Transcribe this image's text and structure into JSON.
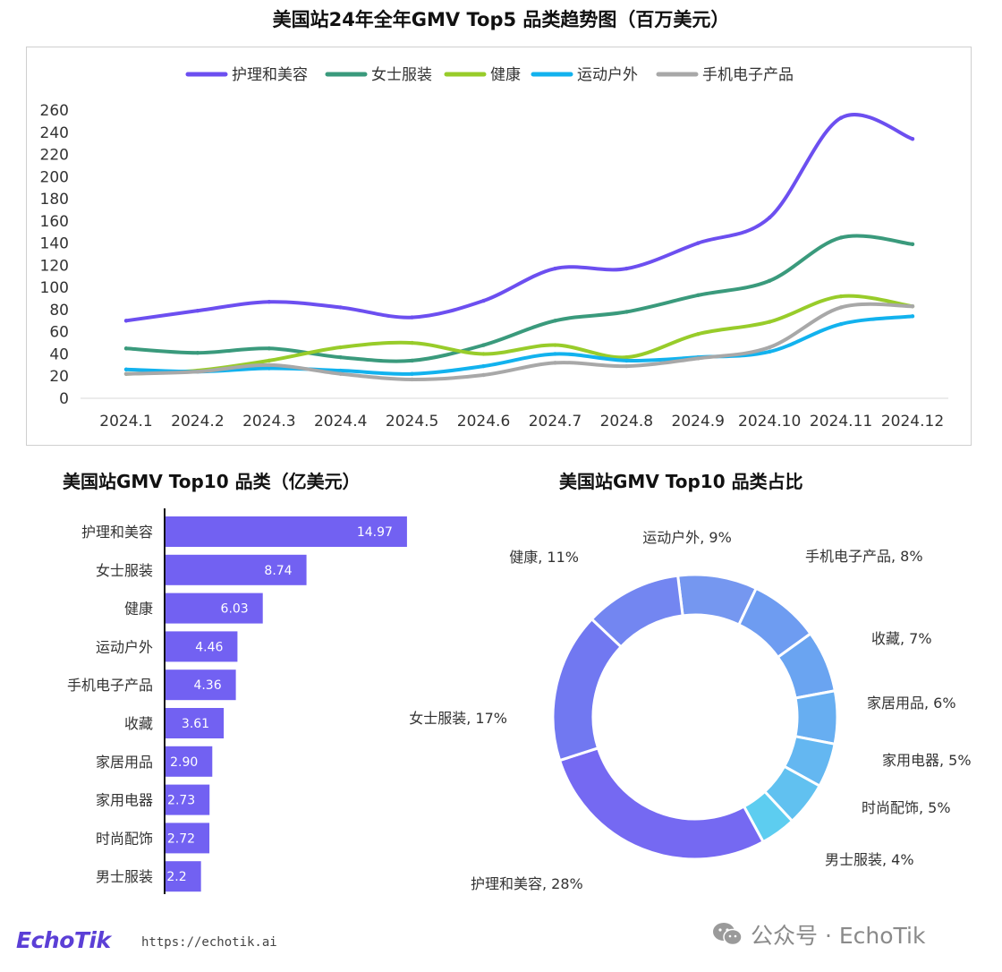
{
  "line_title": "美国站24年全年GMV Top5 品类趋势图（百万美元）",
  "bar_title": "美国站GMV Top10 品类（亿美元）",
  "donut_title": "美国站GMV Top10 品类占比",
  "footer": {
    "brand": "EchoTik",
    "url": "https://echotik.ai",
    "watermark": "公众号 · EchoTik"
  },
  "chart_data": [
    {
      "type": "line",
      "title": "美国站24年全年GMV Top5 品类趋势图（百万美元）",
      "x": [
        "2024.1",
        "2024.2",
        "2024.3",
        "2024.4",
        "2024.5",
        "2024.6",
        "2024.7",
        "2024.8",
        "2024.9",
        "2024.10",
        "2024.11",
        "2024.12"
      ],
      "ylim": [
        0,
        260
      ],
      "yticks": [
        0,
        20,
        40,
        60,
        80,
        100,
        120,
        140,
        160,
        180,
        200,
        220,
        240,
        260
      ],
      "grid": false,
      "legend": "top",
      "series": [
        {
          "name": "护理和美容",
          "color": "#6c4ff0",
          "values": [
            70,
            79,
            87,
            82,
            73,
            88,
            117,
            117,
            140,
            163,
            253,
            234
          ]
        },
        {
          "name": "女士服装",
          "color": "#3a9a7c",
          "values": [
            45,
            41,
            45,
            37,
            34,
            48,
            70,
            78,
            93,
            106,
            145,
            139
          ]
        },
        {
          "name": "健康",
          "color": "#98cc2a",
          "values": [
            22,
            25,
            34,
            46,
            50,
            40,
            48,
            37,
            58,
            69,
            92,
            83
          ]
        },
        {
          "name": "运动户外",
          "color": "#12b2ee",
          "values": [
            26,
            24,
            27,
            25,
            22,
            29,
            40,
            34,
            37,
            42,
            67,
            74
          ]
        },
        {
          "name": "手机电子产品",
          "color": "#a8a8a8",
          "values": [
            22,
            24,
            30,
            22,
            17,
            21,
            32,
            29,
            36,
            46,
            82,
            83
          ]
        }
      ]
    },
    {
      "type": "bar",
      "orientation": "horizontal",
      "title": "美国站GMV Top10 品类（亿美元）",
      "categories": [
        "护理和美容",
        "女士服装",
        "健康",
        "运动户外",
        "手机电子产品",
        "收藏",
        "家居用品",
        "家用电器",
        "时尚配饰",
        "男士服装"
      ],
      "values": [
        14.97,
        8.74,
        6.03,
        4.46,
        4.36,
        3.61,
        2.9,
        2.73,
        2.72,
        2.2
      ],
      "labels": [
        "14.97",
        "8.74",
        "6.03",
        "4.46",
        "4.36",
        "3.61",
        "2.90",
        "2.73",
        "2.72",
        "2.2"
      ],
      "color": "#7261f2"
    },
    {
      "type": "pie",
      "donut": true,
      "title": "美国站GMV Top10 品类占比",
      "slices": [
        {
          "label": "运动户外, 9%",
          "value": 9,
          "color": "#7597f0"
        },
        {
          "label": "手机电子产品, 8%",
          "value": 8,
          "color": "#6e9cf1"
        },
        {
          "label": "收藏, 7%",
          "value": 7,
          "color": "#6aa4f1"
        },
        {
          "label": "家居用品, 6%",
          "value": 6,
          "color": "#67aef1"
        },
        {
          "label": "家用电器, 5%",
          "value": 5,
          "color": "#64b7f1"
        },
        {
          "label": "时尚配饰, 5%",
          "value": 5,
          "color": "#61c1f0"
        },
        {
          "label": "男士服装, 4%",
          "value": 4,
          "color": "#5dcdf0"
        },
        {
          "label": "护理和美容, 28%",
          "value": 28,
          "color": "#7569f2"
        },
        {
          "label": "女士服装, 17%",
          "value": 17,
          "color": "#7178f1"
        },
        {
          "label": "健康, 11%",
          "value": 11,
          "color": "#7386f1"
        }
      ]
    }
  ]
}
